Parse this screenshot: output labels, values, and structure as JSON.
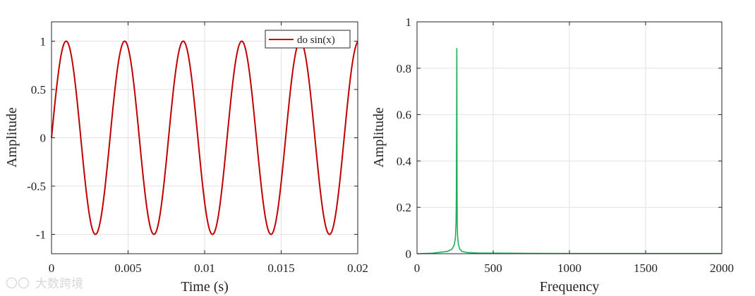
{
  "chart_data": [
    {
      "type": "line",
      "title": "",
      "xlabel": "Time (s)",
      "ylabel": "Amplitude",
      "xlim": [
        0,
        0.02
      ],
      "ylim": [
        -1.2,
        1.2
      ],
      "xticks": [
        0,
        0.005,
        0.01,
        0.015,
        0.02
      ],
      "xtick_labels": [
        "0",
        "0.005",
        "0.01",
        "0.015",
        "0.02"
      ],
      "yticks": [
        -1,
        -0.5,
        0,
        0.5,
        1
      ],
      "ytick_labels": [
        "-1",
        "-0.5",
        "0",
        "0.5",
        "1"
      ],
      "grid": true,
      "legend_position": "top-right",
      "series": [
        {
          "name": "do sin(x)",
          "color": "#c00000",
          "function": "sin(2*pi*f*t)",
          "frequency_hz": 261.6,
          "amplitude": 1
        }
      ]
    },
    {
      "type": "line",
      "title": "",
      "xlabel": "Frequency",
      "ylabel": "Amplitude",
      "xlim": [
        0,
        2000
      ],
      "ylim": [
        0,
        1
      ],
      "xticks": [
        0,
        500,
        1000,
        1500,
        2000
      ],
      "xtick_labels": [
        "0",
        "500",
        "1000",
        "1500",
        "2000"
      ],
      "yticks": [
        0,
        0.2,
        0.4,
        0.6,
        0.8,
        1
      ],
      "ytick_labels": [
        "0",
        "0.2",
        "0.4",
        "0.6",
        "0.8",
        "1"
      ],
      "grid": true,
      "series": [
        {
          "color": "#1fae5a",
          "x": [
            0,
            100,
            200,
            230,
            245,
            252,
            256,
            258,
            260,
            261,
            262,
            263,
            264,
            266,
            268,
            272,
            280,
            295,
            330,
            400,
            600,
            1000,
            2000
          ],
          "y": [
            0,
            0.002,
            0.01,
            0.02,
            0.04,
            0.07,
            0.13,
            0.25,
            0.6,
            0.885,
            0.6,
            0.25,
            0.13,
            0.08,
            0.06,
            0.04,
            0.02,
            0.01,
            0.005,
            0.003,
            0.002,
            0.001,
            0.001
          ]
        }
      ]
    }
  ],
  "watermark": "大数跨境"
}
